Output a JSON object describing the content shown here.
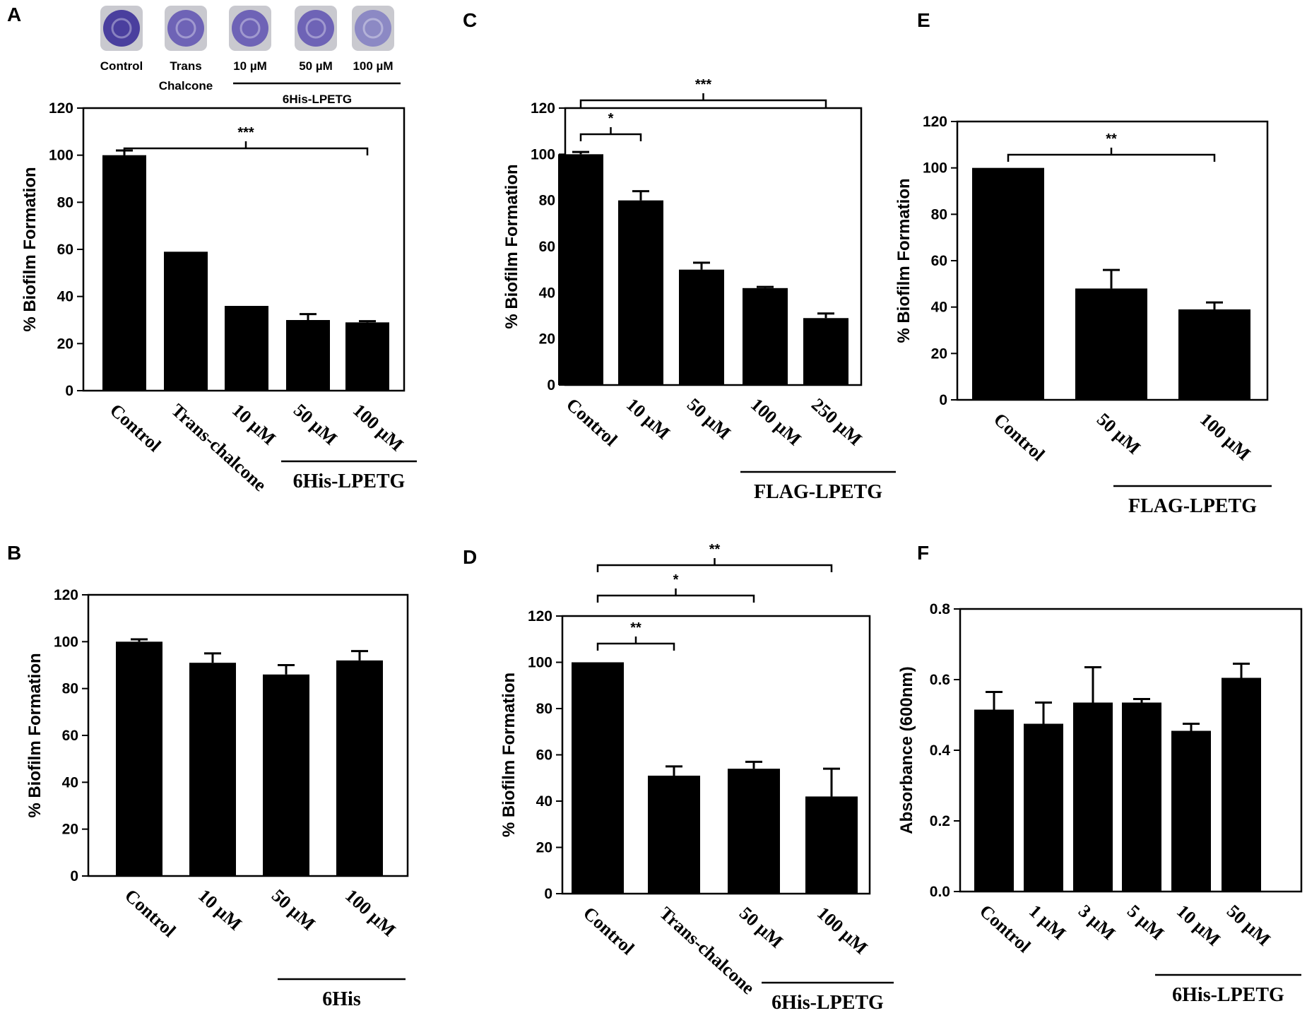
{
  "chart_data": [
    {
      "panel": "A",
      "type": "bar",
      "title": "",
      "xlabel": "",
      "ylabel": "% Biofilm Formation",
      "ylim": [
        0,
        120
      ],
      "yticks": [
        0,
        20,
        40,
        60,
        80,
        100,
        120
      ],
      "categories": [
        "Control",
        "Trans-chalcone",
        "10 µM",
        "50 µM",
        "100 µM"
      ],
      "values": [
        100,
        59,
        36,
        30,
        29
      ],
      "errors": [
        2,
        0,
        0,
        2.5,
        0.5
      ],
      "group_label": "6His-LPETG",
      "group_range": [
        2,
        4
      ],
      "significance": [
        {
          "from": 0,
          "to": 4,
          "label": "***"
        }
      ],
      "inset": {
        "wells": [
          "Control",
          "Trans\nChalcone",
          "10 µM",
          "50 µM",
          "100 µM"
        ],
        "group_label": "6His-LPETG"
      }
    },
    {
      "panel": "B",
      "type": "bar",
      "title": "",
      "xlabel": "",
      "ylabel": "% Biofilm Formation",
      "ylim": [
        0,
        120
      ],
      "yticks": [
        0,
        20,
        40,
        60,
        80,
        100,
        120
      ],
      "categories": [
        "Control",
        "10 µM",
        "50 µM",
        "100 µM"
      ],
      "values": [
        100,
        91,
        86,
        92
      ],
      "errors": [
        1,
        4,
        4,
        4
      ],
      "group_label": "6His",
      "group_range": [
        2,
        3
      ],
      "significance": []
    },
    {
      "panel": "C",
      "type": "bar",
      "title": "",
      "xlabel": "",
      "ylabel": "% Biofilm Formation",
      "ylim": [
        0,
        120
      ],
      "yticks": [
        0,
        20,
        40,
        60,
        80,
        100,
        120
      ],
      "categories": [
        "Control",
        "10 µM",
        "50 µM",
        "100 µM",
        "250 µM"
      ],
      "values": [
        100,
        80,
        50,
        42,
        29
      ],
      "errors": [
        1,
        4,
        3,
        0.5,
        2
      ],
      "group_label": "FLAG-LPETG",
      "group_range": [
        3,
        4
      ],
      "significance": [
        {
          "from": 0,
          "to": 1,
          "label": "*"
        },
        {
          "from": 0,
          "to": 4,
          "label": "***"
        }
      ]
    },
    {
      "panel": "D",
      "type": "bar",
      "title": "",
      "xlabel": "",
      "ylabel": "% Biofilm Formation",
      "ylim": [
        0,
        120
      ],
      "yticks": [
        0,
        20,
        40,
        60,
        80,
        100,
        120
      ],
      "categories": [
        "Control",
        "Trans-chalcone",
        "50 µM",
        "100 µM"
      ],
      "values": [
        100,
        51,
        54,
        42
      ],
      "errors": [
        0,
        4,
        3,
        12
      ],
      "group_label": "6His-LPETG",
      "group_range": [
        2,
        3
      ],
      "significance": [
        {
          "from": 0,
          "to": 1,
          "label": "**"
        },
        {
          "from": 0,
          "to": 2,
          "label": "*"
        },
        {
          "from": 0,
          "to": 3,
          "label": "**"
        }
      ]
    },
    {
      "panel": "E",
      "type": "bar",
      "title": "",
      "xlabel": "",
      "ylabel": "% Biofilm Formation",
      "ylim": [
        0,
        120
      ],
      "yticks": [
        0,
        20,
        40,
        60,
        80,
        100,
        120
      ],
      "categories": [
        "Control",
        "50 µM",
        "100 µM"
      ],
      "values": [
        100,
        48,
        39
      ],
      "errors": [
        0,
        8,
        3
      ],
      "group_label": "FLAG-LPETG",
      "group_range": [
        1,
        2
      ],
      "significance": [
        {
          "from": 0,
          "to": 2,
          "label": "**"
        }
      ]
    },
    {
      "panel": "F",
      "type": "bar",
      "title": "",
      "xlabel": "",
      "ylabel": "Absorbance (600nm)",
      "ylim": [
        0,
        0.8
      ],
      "yticks": [
        "0.0",
        "0.2",
        "0.4",
        "0.6",
        "0.8"
      ],
      "categories": [
        "Control",
        "1 µM",
        "3 µM",
        "5 µM",
        "10 µM",
        "50 µM"
      ],
      "values": [
        0.515,
        0.475,
        0.535,
        0.535,
        0.455,
        0.605
      ],
      "errors": [
        0.05,
        0.06,
        0.1,
        0.01,
        0.02,
        0.04
      ],
      "group_label": "6His-LPETG",
      "group_range": [
        3,
        5
      ],
      "significance": []
    }
  ],
  "colors": {
    "bars": "#000000",
    "axes": "#000000",
    "well_rim": "#c9c9cf",
    "well_dark": "#4a3f9e",
    "well_mid": "#6e63b6",
    "well_light": "#8c89c4"
  }
}
